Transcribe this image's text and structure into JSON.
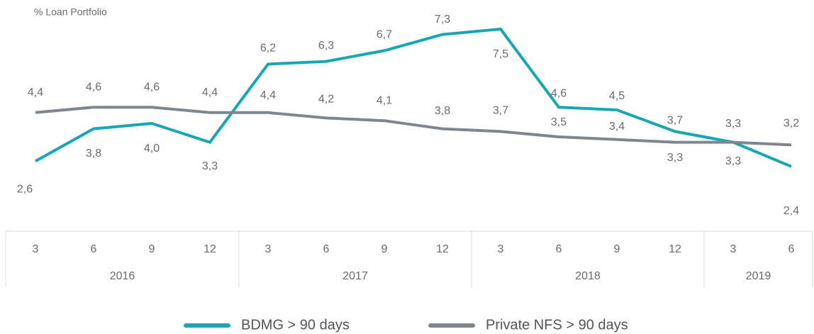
{
  "chart_data": {
    "type": "line",
    "y_label": "% Loan Portfolio",
    "groups": [
      {
        "name": "2016",
        "categories": [
          "3",
          "6",
          "9",
          "12"
        ]
      },
      {
        "name": "2017",
        "categories": [
          "3",
          "6",
          "9",
          "12"
        ]
      },
      {
        "name": "2018",
        "categories": [
          "3",
          "6",
          "9",
          "12"
        ]
      },
      {
        "name": "2019",
        "categories": [
          "3",
          "6"
        ]
      }
    ],
    "series": [
      {
        "name": "BDMG > 90 days",
        "color": "#17a7b2",
        "values": [
          2.6,
          3.8,
          4.0,
          3.3,
          6.2,
          6.3,
          6.7,
          7.3,
          7.5,
          4.6,
          4.5,
          3.7,
          3.3,
          2.4
        ],
        "value_labels": [
          "2,6",
          "3,8",
          "4,0",
          "3,3",
          "6,2",
          "6,3",
          "6,7",
          "7,3",
          "7,5",
          "4,6",
          "4,5",
          "3,7",
          "3,3",
          "2,4"
        ]
      },
      {
        "name": "Private NFS > 90 days",
        "color": "#7f868e",
        "values": [
          4.4,
          4.6,
          4.6,
          4.4,
          4.4,
          4.2,
          4.1,
          3.8,
          3.7,
          3.5,
          3.4,
          3.3,
          3.3,
          3.2
        ],
        "value_labels": [
          "4,4",
          "4,6",
          "4,6",
          "4,4",
          "4,4",
          "4,2",
          "4,1",
          "3,8",
          "3,7",
          "3,5",
          "3,4",
          "3,3",
          "3,3",
          "3,2"
        ]
      }
    ]
  }
}
